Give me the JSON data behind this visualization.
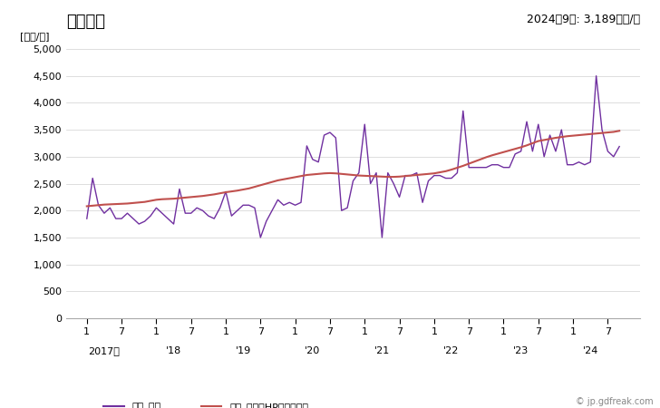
{
  "title": "出荷単価",
  "ylabel": "[万円/台]",
  "annotation": "2024年9月: 3,189万円/台",
  "ylim": [
    0,
    5000
  ],
  "yticks": [
    0,
    500,
    1000,
    1500,
    2000,
    2500,
    3000,
    3500,
    4000,
    4500,
    5000
  ],
  "line_color": "#7030A0",
  "hp_color": "#C0504D",
  "watermark": "© jp.gdfreak.com",
  "legend_line": "出荷_価格",
  "legend_hp": "出荷_価格（HPフィルタ）",
  "price": [
    1850,
    2600,
    2100,
    1950,
    2050,
    1850,
    1850,
    1950,
    1850,
    1750,
    1800,
    1900,
    2050,
    1950,
    1850,
    1750,
    2400,
    1950,
    1950,
    2050,
    2000,
    1900,
    1850,
    2050,
    2350,
    1900,
    2000,
    2100,
    2100,
    2050,
    1500,
    1800,
    2000,
    2200,
    2100,
    2150,
    2100,
    2150,
    3200,
    2950,
    2900,
    3400,
    3450,
    3350,
    2000,
    2050,
    2550,
    2700,
    3600,
    2500,
    2700,
    1500,
    2700,
    2500,
    2250,
    2650,
    2650,
    2700,
    2150,
    2550,
    2650,
    2650,
    2600,
    2600,
    2700,
    3850,
    2800,
    2800,
    2800,
    2800,
    2850,
    2850,
    2800,
    2800,
    3050,
    3100,
    3650,
    3100,
    3600,
    3000,
    3400,
    3100,
    3500,
    2850,
    2850,
    2900,
    2850,
    2900,
    4500,
    3500,
    3100,
    3000,
    3189
  ],
  "hp_filter": [
    2080,
    2090,
    2100,
    2110,
    2115,
    2120,
    2125,
    2130,
    2140,
    2150,
    2160,
    2180,
    2200,
    2210,
    2215,
    2220,
    2230,
    2240,
    2250,
    2260,
    2270,
    2285,
    2300,
    2320,
    2340,
    2355,
    2370,
    2390,
    2410,
    2440,
    2470,
    2500,
    2530,
    2560,
    2580,
    2600,
    2620,
    2640,
    2660,
    2670,
    2680,
    2690,
    2695,
    2690,
    2680,
    2670,
    2660,
    2650,
    2645,
    2640,
    2635,
    2630,
    2625,
    2625,
    2630,
    2640,
    2650,
    2660,
    2670,
    2680,
    2690,
    2710,
    2730,
    2760,
    2795,
    2830,
    2870,
    2910,
    2950,
    2990,
    3025,
    3055,
    3085,
    3115,
    3145,
    3175,
    3210,
    3250,
    3290,
    3310,
    3330,
    3350,
    3365,
    3380,
    3390,
    3400,
    3410,
    3420,
    3430,
    3440,
    3450,
    3460,
    3480
  ],
  "start_year": 2017,
  "start_month": 1,
  "n_months": 93
}
